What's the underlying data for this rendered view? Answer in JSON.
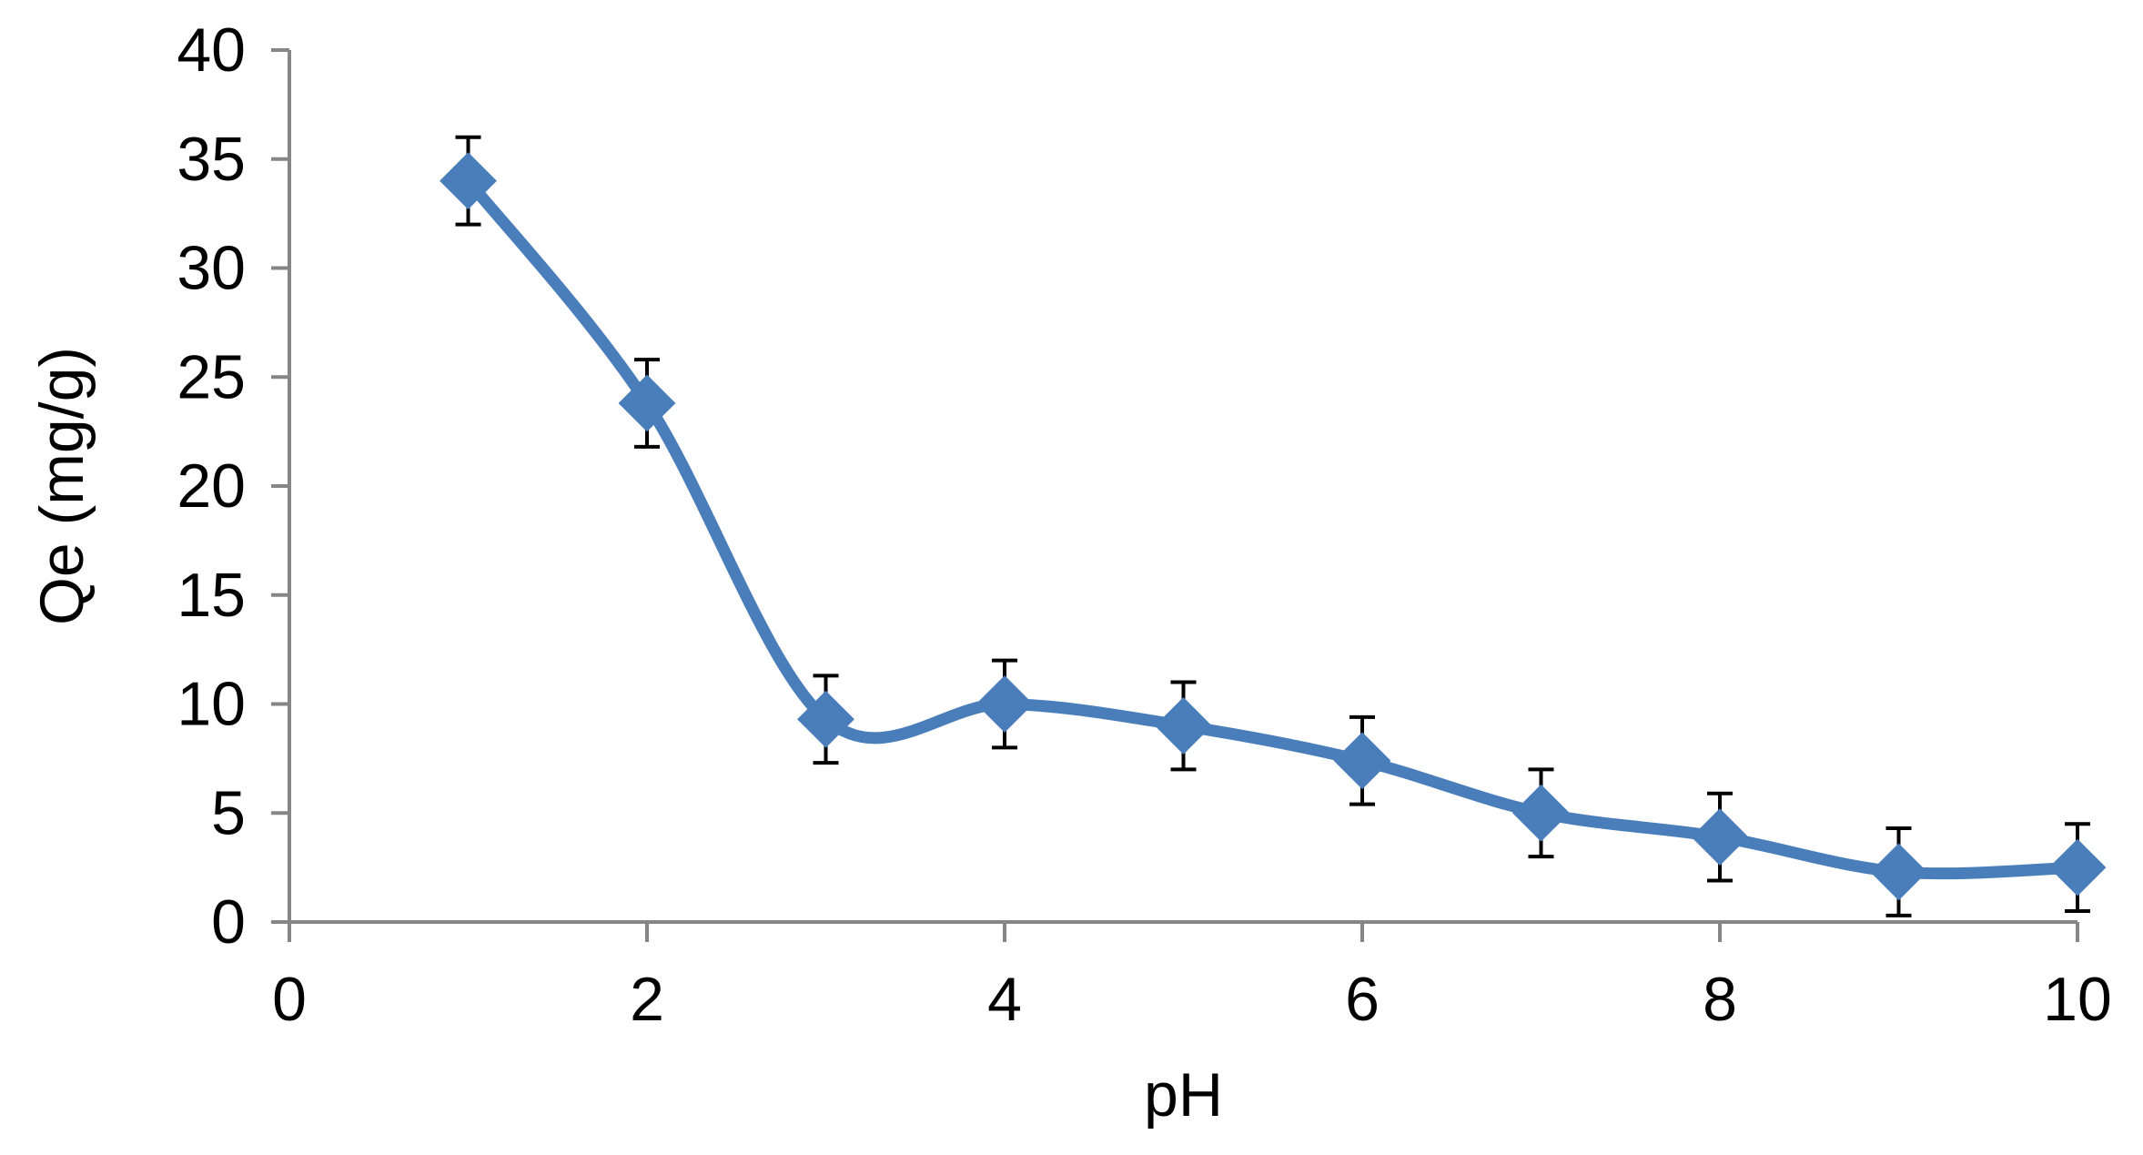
{
  "chart_data": {
    "type": "line",
    "title": "",
    "xlabel": "pH",
    "ylabel": "Qe (mg/g)",
    "xlim": [
      0,
      10
    ],
    "ylim": [
      0,
      40
    ],
    "x_ticks": [
      0,
      2,
      4,
      6,
      8,
      10
    ],
    "y_ticks": [
      0,
      5,
      10,
      15,
      20,
      25,
      30,
      35,
      40
    ],
    "grid": false,
    "legend": "none",
    "smoothed": true,
    "marker": "diamond",
    "series_color": "#4a7ebb",
    "errorbar_color": "#000000",
    "axis_color": "#868686",
    "series": [
      {
        "x": [
          1,
          2,
          3,
          4,
          5,
          6,
          7,
          8,
          9,
          10
        ],
        "y": [
          34,
          23.8,
          9.3,
          10,
          9,
          7.4,
          5,
          3.9,
          2.3,
          2.5
        ],
        "error": [
          2,
          2,
          2,
          2,
          2,
          2,
          2,
          2,
          2,
          2
        ]
      }
    ]
  }
}
